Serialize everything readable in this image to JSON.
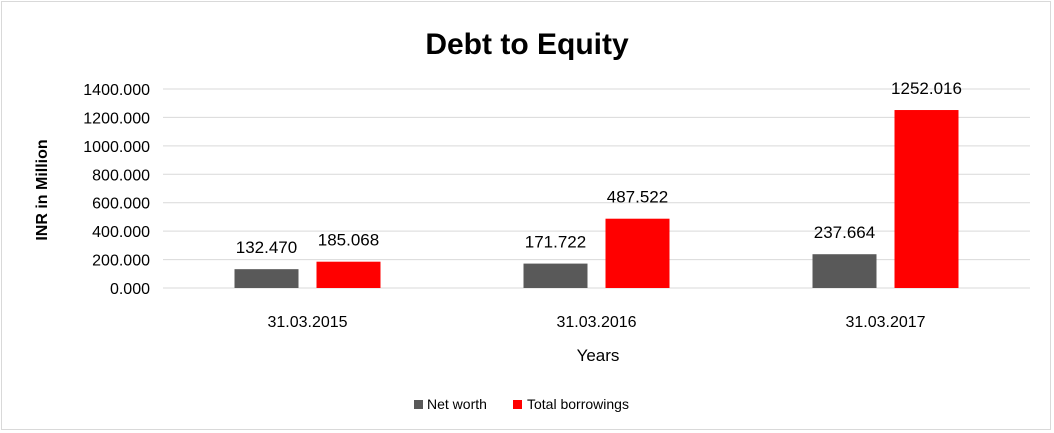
{
  "chart_data": {
    "type": "bar",
    "title": "Debt to Equity",
    "xlabel": "Years",
    "ylabel": "INR in Million",
    "categories": [
      "31.03.2015",
      "31.03.2016",
      "31.03.2017"
    ],
    "series": [
      {
        "name": "Net worth",
        "values": [
          132.47,
          171.722,
          237.664
        ],
        "color": "#595959"
      },
      {
        "name": "Total borrowings",
        "values": [
          185.068,
          487.522,
          1252.016
        ],
        "color": "#ff0000"
      }
    ],
    "value_labels": [
      [
        "132.470",
        "171.722",
        "237.664"
      ],
      [
        "185.068",
        "487.522",
        "1252.016"
      ]
    ],
    "ylim": [
      0,
      1400
    ],
    "yticks": [
      0,
      200,
      400,
      600,
      800,
      1000,
      1200,
      1400
    ],
    "ytick_labels": [
      "0.000",
      "200.000",
      "400.000",
      "600.000",
      "800.000",
      "1000.000",
      "1200.000",
      "1400.000"
    ],
    "grid": true,
    "legend_position": "bottom"
  }
}
